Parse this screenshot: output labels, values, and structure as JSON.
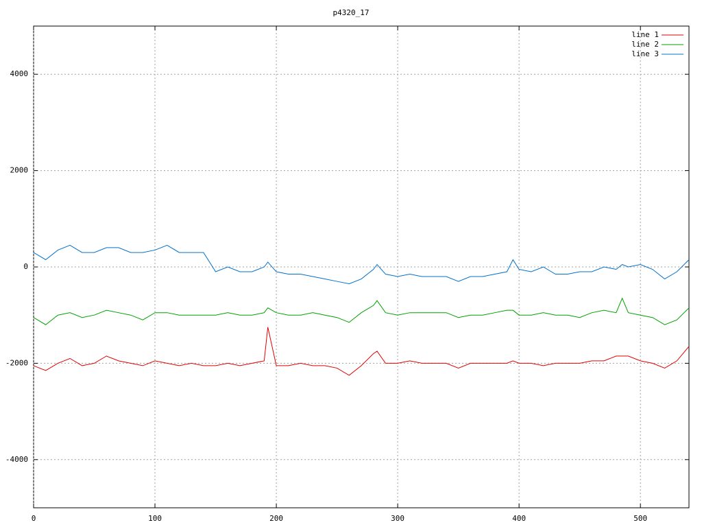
{
  "chart_data": {
    "type": "line",
    "title": "p4320_17",
    "x": [
      0,
      10,
      20,
      30,
      40,
      50,
      60,
      70,
      80,
      90,
      100,
      110,
      120,
      130,
      140,
      150,
      160,
      170,
      180,
      190,
      193,
      200,
      210,
      220,
      230,
      240,
      250,
      260,
      270,
      280,
      283,
      290,
      300,
      310,
      320,
      330,
      340,
      350,
      360,
      370,
      380,
      390,
      395,
      400,
      410,
      420,
      430,
      440,
      450,
      460,
      470,
      480,
      485,
      490,
      500,
      510,
      520,
      530,
      540
    ],
    "series": [
      {
        "name": "line 1",
        "color": "#e00000",
        "values": [
          -2050,
          -2150,
          -2000,
          -1900,
          -2050,
          -2000,
          -1850,
          -1950,
          -2000,
          -2050,
          -1950,
          -2000,
          -2050,
          -2000,
          -2050,
          -2050,
          -2000,
          -2050,
          -2000,
          -1950,
          -1250,
          -2050,
          -2050,
          -2000,
          -2050,
          -2050,
          -2100,
          -2250,
          -2050,
          -1800,
          -1750,
          -2000,
          -2000,
          -1950,
          -2000,
          -2000,
          -2000,
          -2100,
          -2000,
          -2000,
          -2000,
          -2000,
          -1950,
          -2000,
          -2000,
          -2050,
          -2000,
          -2000,
          -2000,
          -1950,
          -1950,
          -1850,
          -1850,
          -1850,
          -1950,
          -2000,
          -2100,
          -1950,
          -1650
        ]
      },
      {
        "name": "line 2",
        "color": "#00a000",
        "values": [
          -1050,
          -1200,
          -1000,
          -950,
          -1050,
          -1000,
          -900,
          -950,
          -1000,
          -1100,
          -950,
          -950,
          -1000,
          -1000,
          -1000,
          -1000,
          -950,
          -1000,
          -1000,
          -950,
          -850,
          -950,
          -1000,
          -1000,
          -950,
          -1000,
          -1050,
          -1150,
          -950,
          -800,
          -700,
          -950,
          -1000,
          -950,
          -950,
          -950,
          -950,
          -1050,
          -1000,
          -1000,
          -950,
          -900,
          -900,
          -1000,
          -1000,
          -950,
          -1000,
          -1000,
          -1050,
          -950,
          -900,
          -950,
          -650,
          -950,
          -1000,
          -1050,
          -1200,
          -1100,
          -850
        ]
      },
      {
        "name": "line 3",
        "color": "#0070cc",
        "values": [
          300,
          150,
          350,
          450,
          300,
          300,
          400,
          400,
          300,
          300,
          350,
          450,
          300,
          300,
          300,
          -100,
          0,
          -100,
          -100,
          0,
          100,
          -100,
          -150,
          -150,
          -200,
          -250,
          -300,
          -350,
          -250,
          -50,
          50,
          -150,
          -200,
          -150,
          -200,
          -200,
          -200,
          -300,
          -200,
          -200,
          -150,
          -100,
          150,
          -50,
          -100,
          0,
          -150,
          -150,
          -100,
          -100,
          0,
          -50,
          50,
          0,
          50,
          -50,
          -250,
          -100,
          150
        ]
      }
    ],
    "xlim": [
      0,
      540
    ],
    "xticks": [
      0,
      100,
      200,
      300,
      400,
      500
    ],
    "ylim": [
      -5000,
      5000
    ],
    "yticks": [
      -4000,
      -2000,
      0,
      2000,
      4000
    ],
    "grid": true,
    "legend": "top-right"
  }
}
